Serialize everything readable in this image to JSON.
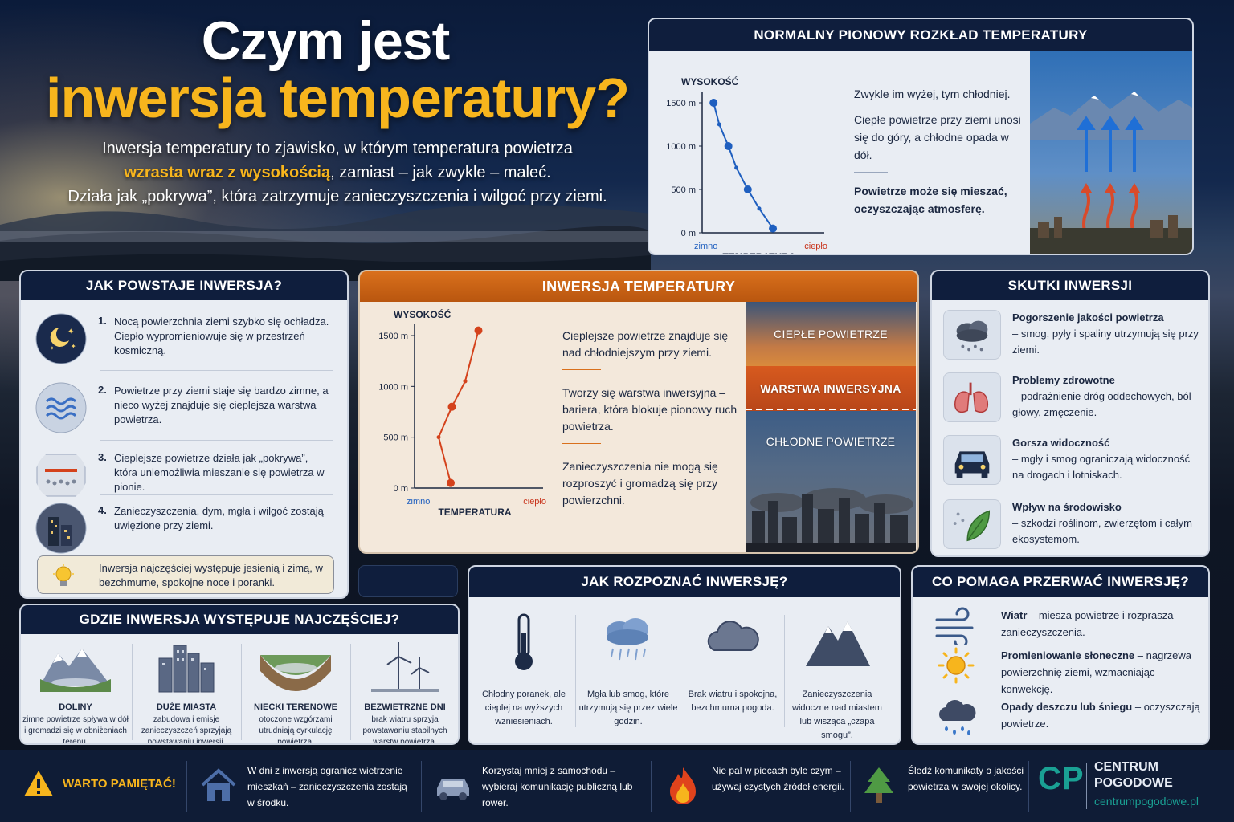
{
  "header": {
    "title_line1": "Czym jest",
    "title_line2": "inwersja temperatury?",
    "intro_part1": "Inwersja temperatury to zjawisko, w którym temperatura powietrza",
    "intro_highlight": "wzrasta wraz z wysokością",
    "intro_part2": ", zamiast – jak zwykle – maleć.",
    "intro_line3": "Działa jak „pokrywa”, która zatrzymuje zanieczyszczenia i wilgoć przy ziemi."
  },
  "normal": {
    "title": "NORMALNY PIONOWY ROZKŁAD TEMPERATURY",
    "text1": "Zwykle im wyżej, tym chłodniej.",
    "text2": "Ciepłe powietrze przy ziemi unosi się do góry, a chłodne opada w dół.",
    "text3": "Powietrze może się mieszać, oczyszczając atmosferę."
  },
  "how": {
    "title": "JAK POWSTAJE INWERSJA?",
    "steps": [
      {
        "num": "1.",
        "text": "Nocą powierzchnia ziemi szybko się ochładza. Ciepło wypromieniowuje się w przestrzeń kosmiczną."
      },
      {
        "num": "2.",
        "text": "Powietrze przy ziemi staje się bardzo zimne, a nieco wyżej znajduje się cieplejsza warstwa powietrza."
      },
      {
        "num": "3.",
        "text": "Cieplejsze powietrze działa jak „pokrywa”, która uniemożliwia mieszanie się powietrza w pionie."
      },
      {
        "num": "4.",
        "text": "Zanieczyszczenia, dym, mgła i wilgoć zostają uwięzione przy ziemi."
      }
    ],
    "tip": "Inwersja najczęściej występuje jesienią i zimą, w bezchmurne, spokojne noce i poranki."
  },
  "inversion": {
    "title": "INWERSJA TEMPERATURY",
    "text1": "Cieplejsze powietrze znajduje się nad chłodniejszym przy ziemi.",
    "text2": "Tworzy się warstwa inwersyjna – bariera, która blokuje pionowy ruch powietrza.",
    "text3": "Zanieczyszczenia nie mogą się rozproszyć i gromadzą się przy powierzchni.",
    "layer_warm": "CIEPŁE POWIETRZE",
    "layer_inv": "WARSTWA INWERSYJNA",
    "layer_cold": "CHŁODNE POWIETRZE"
  },
  "effects": {
    "title": "SKUTKI INWERSJI",
    "items": [
      {
        "head": "Pogorszenie jakości powietrza",
        "text": "– smog, pyły i spaliny utrzymują się przy ziemi."
      },
      {
        "head": "Problemy zdrowotne",
        "text": "– podrażnienie dróg oddechowych, ból głowy, zmęczenie."
      },
      {
        "head": "Gorsza widoczność",
        "text": "– mgły i smog ograniczają widoczność na drogach i lotniskach."
      },
      {
        "head": "Wpływ na środowisko",
        "text": "– szkodzi roślinom, zwierzętom i całym ekosystemom."
      }
    ]
  },
  "where": {
    "title": "GDZIE INWERSJA WYSTĘPUJE NAJCZĘŚCIEJ?",
    "items": [
      {
        "head": "DOLINY",
        "text": "zimne powietrze spływa w dół i gromadzi się w obniżeniach terenu."
      },
      {
        "head": "DUŻE MIASTA",
        "text": "zabudowa i emisje zanieczyszczeń sprzyjają powstawaniu inwersji."
      },
      {
        "head": "NIECKI TERENOWE",
        "text": "otoczone wzgórzami utrudniają cyrkulację powietrza."
      },
      {
        "head": "BEZWIETRZNE DNI",
        "text": "brak wiatru sprzyja powstawaniu stabilnych warstw powietrza."
      }
    ]
  },
  "recognize": {
    "title": "JAK ROZPOZNAĆ INWERSJĘ?",
    "items": [
      {
        "text": "Chłodny poranek, ale cieplej na wyższych wzniesieniach."
      },
      {
        "text": "Mgła lub smog, które utrzymują się przez wiele godzin."
      },
      {
        "text": "Brak wiatru i spokojna, bezchmurna pogoda."
      },
      {
        "text": "Zanieczyszczenia widoczne nad miastem lub wisząca „czapa smogu”."
      }
    ]
  },
  "break": {
    "title": "CO POMAGA PRZERWAĆ INWERSJĘ?",
    "items": [
      {
        "head": "Wiatr",
        "text": " – miesza powietrze i rozprasza zanieczyszczenia."
      },
      {
        "head": "Promieniowanie słoneczne",
        "text": " – nagrzewa powierzchnię ziemi, wzmacniając konwekcję."
      },
      {
        "head": "Opady deszczu lub śniegu",
        "text": " – oczyszczają powietrze."
      }
    ]
  },
  "footer": {
    "warn_label": "WARTO PAMIĘTAĆ!",
    "items": [
      {
        "text": "W dni z inwersją ogranicz wietrzenie mieszkań – zanieczyszczenia zostają w środku."
      },
      {
        "text": "Korzystaj mniej z samochodu – wybieraj komunikację publiczną lub rower."
      },
      {
        "text": "Nie pal w piecach byle czym – używaj czystych źródeł energii."
      },
      {
        "text": "Śledź komunikaty o jakości powietrza w swojej okolicy."
      }
    ],
    "brand_short": "CP",
    "brand_name": "CENTRUM POGODOWE",
    "brand_url": "centrumpogodowe.pl"
  },
  "chart_data": [
    {
      "type": "line",
      "xlabel": "TEMPERATURA",
      "ylabel": "WYSOKOŚĆ",
      "x_left_label": "zimno",
      "x_right_label": "ciepło",
      "y_ticks": [
        "0 m",
        "500 m",
        "1000 m",
        "1500 m"
      ],
      "ylim": [
        0,
        1500
      ],
      "xlim": [
        0,
        10
      ],
      "points": [
        [
          1.0,
          1500
        ],
        [
          1.5,
          1250
        ],
        [
          2.3,
          1000
        ],
        [
          3.0,
          750
        ],
        [
          4.0,
          500
        ],
        [
          5.0,
          280
        ],
        [
          6.2,
          50
        ]
      ],
      "color": "#1f5fbf"
    },
    {
      "type": "line",
      "xlabel": "TEMPERATURA",
      "ylabel": "WYSOKOŚĆ",
      "x_left_label": "zimno",
      "x_right_label": "ciepło",
      "y_ticks": [
        "0 m",
        "500 m",
        "1000 m",
        "1500 m"
      ],
      "ylim": [
        0,
        1500
      ],
      "xlim": [
        0,
        10
      ],
      "points": [
        [
          3.0,
          50
        ],
        [
          2.0,
          500
        ],
        [
          3.1,
          800
        ],
        [
          4.2,
          1050
        ],
        [
          5.3,
          1550
        ]
      ],
      "color": "#d4421c"
    }
  ]
}
